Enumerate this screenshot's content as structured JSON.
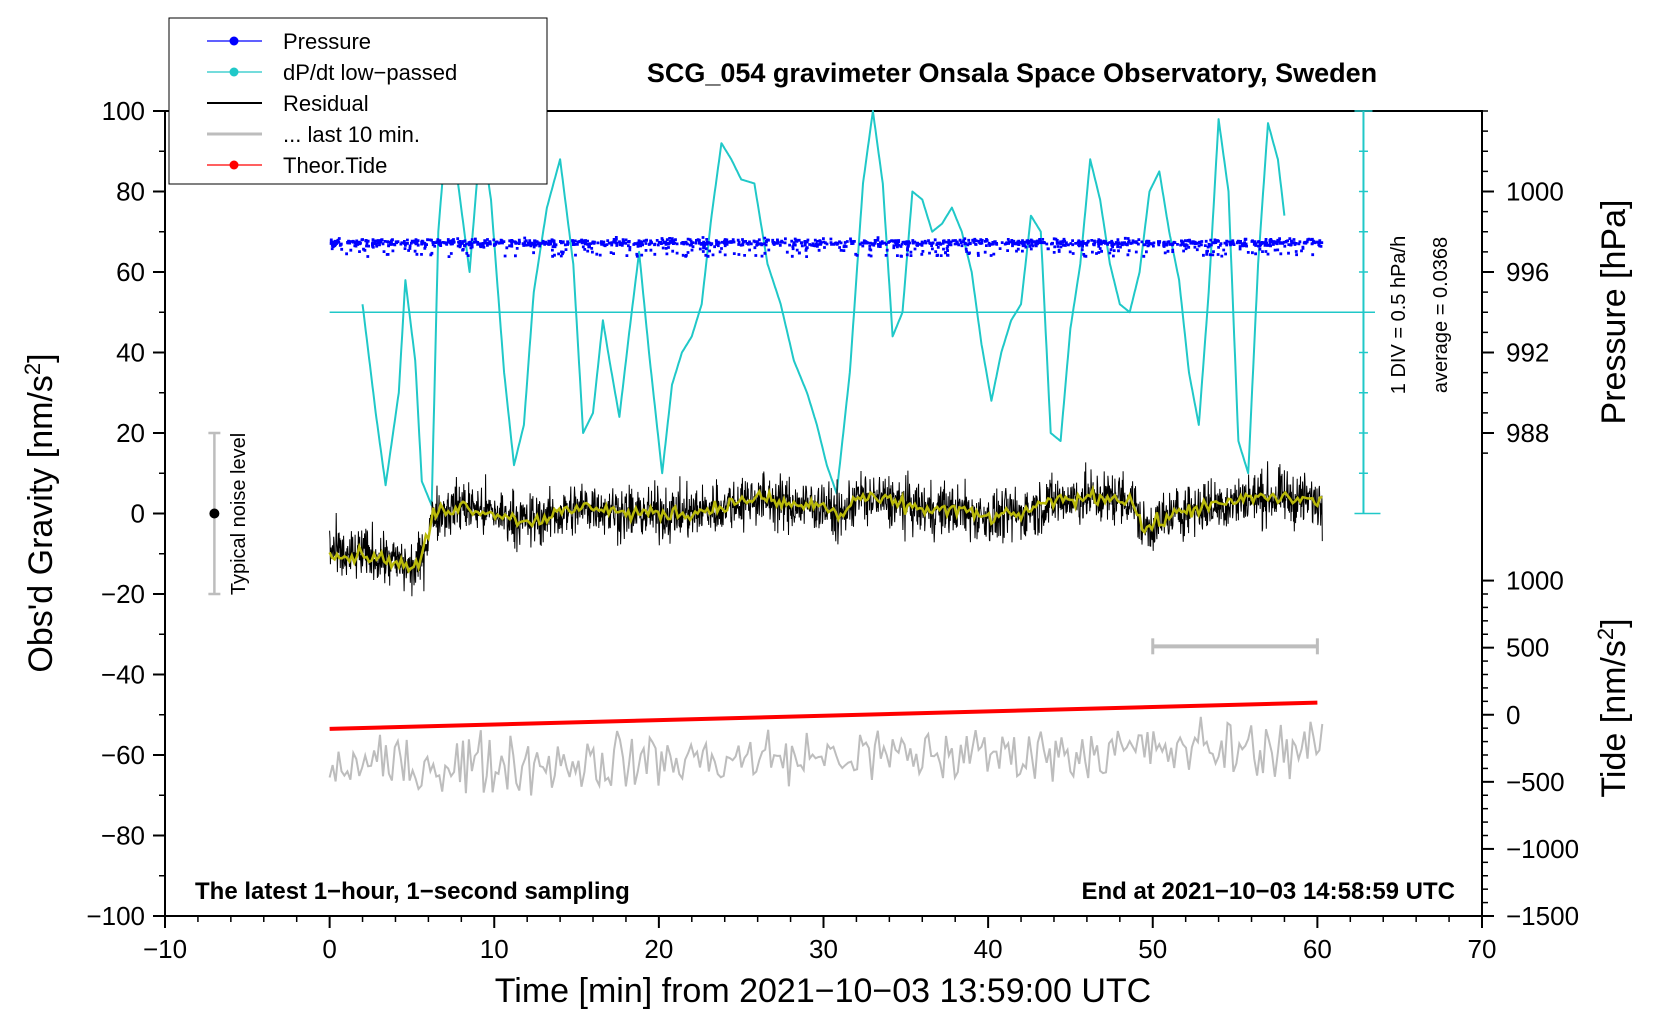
{
  "chart_data": {
    "type": "line",
    "title": "SCG_054 gravimeter Onsala Space Observatory, Sweden",
    "xlabel": "Time [min] from 2021−10−03 13:59:00 UTC",
    "ylabel_prefix": "Obs'd Gravity [nm/s",
    "ylabel_sup": "2",
    "ylabel_suffix": "]",
    "pressure_label": "Pressure [hPa]",
    "tide_label_prefix": "Tide [nm/s",
    "tide_label_sup": "2",
    "tide_label_suffix": "]",
    "xlim": [
      -10,
      70
    ],
    "ylim": [
      -100,
      100
    ],
    "x_ticks": [
      "−10",
      "0",
      "10",
      "20",
      "30",
      "40",
      "50",
      "60",
      "70"
    ],
    "y_ticks": [
      "100",
      "80",
      "60",
      "40",
      "20",
      "0",
      "−20",
      "−40",
      "−60",
      "−80",
      "−100"
    ],
    "pressure_ticks": [
      "1000",
      "996",
      "992",
      "988"
    ],
    "tide_ticks": [
      "1000",
      "500",
      "0",
      "−500",
      "−1000",
      "−1500"
    ],
    "legend": [
      {
        "label": "Pressure",
        "color": "#0000ff",
        "marker": true
      },
      {
        "label": "dP/dt low−passed",
        "color": "#20c8c8",
        "marker": true
      },
      {
        "label": "Residual",
        "color": "#000000",
        "marker": false
      },
      {
        "label": "... last 10 min.",
        "color": "#bdbdbd",
        "marker": false
      },
      {
        "label": "Theor.Tide",
        "color": "#ff0000",
        "marker": true
      }
    ],
    "dpdt_scale_note": "1 DIV = 0.5 hPa/h",
    "dpdt_average_note": "average = 0.0368",
    "noise_label": "Typical noise level",
    "bottom_left_note": "The latest 1−hour, 1−second sampling",
    "bottom_right_note": "End at 2021−10−03 14:58:59 UTC",
    "series": [
      {
        "name": "dP/dt low−passed",
        "color": "#20c8c8",
        "x": [
          2.0,
          2.8,
          3.4,
          4.2,
          4.6,
          5.2,
          5.6,
          6.2,
          6.6,
          7.2,
          7.8,
          8.5,
          9.2,
          9.8,
          10.6,
          11.2,
          11.8,
          12.4,
          13.2,
          14.0,
          14.8,
          15.4,
          16.0,
          16.6,
          17.0,
          17.6,
          18.2,
          18.8,
          19.4,
          20.2,
          20.8,
          21.4,
          22.0,
          22.6,
          23.2,
          23.8,
          24.4,
          25.0,
          25.8,
          26.6,
          27.4,
          28.2,
          29.0,
          29.6,
          30.2,
          30.8,
          31.6,
          32.4,
          33.0,
          33.6,
          34.2,
          34.8,
          35.4,
          36.0,
          36.6,
          37.2,
          37.8,
          38.4,
          39.0,
          39.6,
          40.2,
          40.8,
          41.4,
          42.0,
          42.6,
          43.2,
          43.8,
          44.4,
          45.0,
          45.6,
          46.2,
          46.8,
          47.4,
          48.0,
          48.6,
          49.2,
          49.8,
          50.4,
          51.0,
          51.6,
          52.2,
          52.8,
          53.4,
          54.0,
          54.6,
          55.2,
          55.8,
          56.4,
          57.0,
          57.6,
          58.0
        ],
        "y": [
          52,
          25,
          7,
          30,
          58,
          38,
          8,
          2,
          70,
          100,
          82,
          60,
          95,
          78,
          35,
          12,
          22,
          55,
          76,
          88,
          62,
          20,
          25,
          48,
          38,
          24,
          45,
          65,
          40,
          10,
          32,
          40,
          44,
          52,
          74,
          92,
          88,
          83,
          82,
          62,
          52,
          38,
          30,
          22,
          12,
          5,
          35,
          82,
          100,
          82,
          44,
          50,
          80,
          78,
          70,
          72,
          76,
          70,
          60,
          42,
          28,
          40,
          48,
          52,
          74,
          70,
          20,
          18,
          46,
          62,
          88,
          78,
          62,
          52,
          50,
          60,
          80,
          85,
          70,
          58,
          35,
          22,
          55,
          98,
          80,
          18,
          10,
          62,
          97,
          88,
          74
        ],
        "zero_ref_level": 50
      },
      {
        "name": "Theor.Tide",
        "color": "#ff0000",
        "x": [
          0,
          60
        ],
        "y": [
          -53.5,
          -47
        ]
      }
    ],
    "pressure_level_hpa": 997.5,
    "residual_mean_steps": {
      "x": [
        0,
        1,
        2,
        3,
        4,
        5,
        5.6,
        6.3,
        8,
        10,
        12,
        14,
        16,
        18,
        20,
        22,
        24,
        26,
        28,
        30,
        31,
        32,
        34,
        36,
        38,
        40,
        42,
        44,
        46,
        48,
        48.8,
        49.4,
        52,
        54,
        56,
        58,
        60
      ],
      "y": [
        -9,
        -11,
        -10,
        -11,
        -12,
        -14,
        -11,
        0,
        2,
        0,
        -2,
        0,
        2,
        0,
        0,
        0,
        2,
        4,
        2,
        2,
        -1,
        4,
        3,
        1,
        1,
        -1,
        0,
        3,
        4,
        4,
        3,
        -4,
        1,
        2,
        4,
        4,
        3
      ]
    },
    "noise_bar": {
      "x": -7,
      "y_low": -20,
      "y_high": 20
    },
    "last_10min_bar": {
      "x_start": 50,
      "x_end": 60,
      "y": -33
    }
  }
}
